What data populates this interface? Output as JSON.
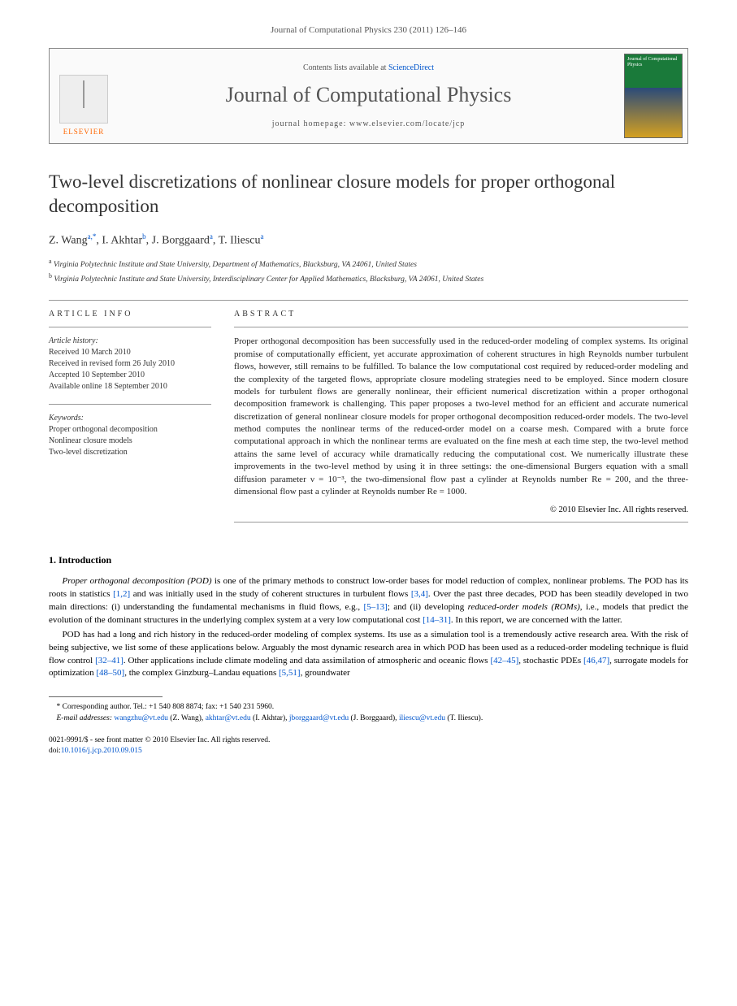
{
  "journalRef": "Journal of Computational Physics 230 (2011) 126–146",
  "masthead": {
    "contentsPrefix": "Contents lists available at ",
    "contentsLink": "ScienceDirect",
    "journalTitle": "Journal of Computational Physics",
    "homepagePrefix": "journal homepage: ",
    "homepage": "www.elsevier.com/locate/jcp",
    "publisherLabel": "ELSEVIER",
    "coverTitle": "Journal of Computational Physics"
  },
  "article": {
    "title": "Two-level discretizations of nonlinear closure models for proper orthogonal decomposition",
    "authors": [
      {
        "name": "Z. Wang",
        "affMark": "a,",
        "corr": "*"
      },
      {
        "name": "I. Akhtar",
        "affMark": "b"
      },
      {
        "name": "J. Borggaard",
        "affMark": "a"
      },
      {
        "name": "T. Iliescu",
        "affMark": "a"
      }
    ],
    "affiliations": [
      {
        "mark": "a",
        "text": "Virginia Polytechnic Institute and State University, Department of Mathematics, Blacksburg, VA 24061, United States"
      },
      {
        "mark": "b",
        "text": "Virginia Polytechnic Institute and State University, Interdisciplinary Center for Applied Mathematics, Blacksburg, VA 24061, United States"
      }
    ]
  },
  "info": {
    "sectionLabel": "ARTICLE INFO",
    "historyLabel": "Article history:",
    "history": [
      "Received 10 March 2010",
      "Received in revised form 26 July 2010",
      "Accepted 10 September 2010",
      "Available online 18 September 2010"
    ],
    "keywordsLabel": "Keywords:",
    "keywords": [
      "Proper orthogonal decomposition",
      "Nonlinear closure models",
      "Two-level discretization"
    ]
  },
  "abstract": {
    "sectionLabel": "ABSTRACT",
    "text": "Proper orthogonal decomposition has been successfully used in the reduced-order modeling of complex systems. Its original promise of computationally efficient, yet accurate approximation of coherent structures in high Reynolds number turbulent flows, however, still remains to be fulfilled. To balance the low computational cost required by reduced-order modeling and the complexity of the targeted flows, appropriate closure modeling strategies need to be employed. Since modern closure models for turbulent flows are generally nonlinear, their efficient numerical discretization within a proper orthogonal decomposition framework is challenging. This paper proposes a two-level method for an efficient and accurate numerical discretization of general nonlinear closure models for proper orthogonal decomposition reduced-order models. The two-level method computes the nonlinear terms of the reduced-order model on a coarse mesh. Compared with a brute force computational approach in which the nonlinear terms are evaluated on the fine mesh at each time step, the two-level method attains the same level of accuracy while dramatically reducing the computational cost. We numerically illustrate these improvements in the two-level method by using it in three settings: the one-dimensional Burgers equation with a small diffusion parameter ν = 10⁻³, the two-dimensional flow past a cylinder at Reynolds number Re = 200, and the three-dimensional flow past a cylinder at Reynolds number Re = 1000.",
    "copyright": "© 2010 Elsevier Inc. All rights reserved."
  },
  "intro": {
    "heading": "1. Introduction",
    "para1_lead": "Proper orthogonal decomposition (POD)",
    "para1_rest": " is one of the primary methods to construct low-order bases for model reduction of complex, nonlinear problems. The POD has its roots in statistics ",
    "para1_ref1": "[1,2]",
    "para1_mid1": " and was initially used in the study of coherent structures in turbulent flows ",
    "para1_ref2": "[3,4]",
    "para1_mid2": ". Over the past three decades, POD has been steadily developed in two main directions: (i) understanding the fundamental mechanisms in fluid flows, e.g., ",
    "para1_ref3": "[5–13]",
    "para1_mid3": "; and (ii) developing ",
    "para1_ital": "reduced-order models (ROMs)",
    "para1_mid4": ", i.e., models that predict the evolution of the dominant structures in the underlying complex system at a very low computational cost ",
    "para1_ref4": "[14–31]",
    "para1_end": ". In this report, we are concerned with the latter.",
    "para2_a": "POD has had a long and rich history in the reduced-order modeling of complex systems. Its use as a simulation tool is a tremendously active research area. With the risk of being subjective, we list some of these applications below. Arguably the most dynamic research area in which POD has been used as a reduced-order modeling technique is fluid flow control ",
    "para2_ref1": "[32–41]",
    "para2_b": ". Other applications include climate modeling and data assimilation of atmospheric and oceanic flows ",
    "para2_ref2": "[42–45]",
    "para2_c": ", stochastic PDEs ",
    "para2_ref3": "[46,47]",
    "para2_d": ", surrogate models for optimization ",
    "para2_ref4": "[48–50]",
    "para2_e": ", the complex Ginzburg–Landau equations ",
    "para2_ref5": "[5,51]",
    "para2_f": ", groundwater"
  },
  "footnotes": {
    "corrLabel": "* Corresponding author. ",
    "corrText": "Tel.: +1 540 808 8874; fax: +1 540 231 5960.",
    "emailLabel": "E-mail addresses: ",
    "emails": [
      {
        "addr": "wangzhu@vt.edu",
        "who": " (Z. Wang), "
      },
      {
        "addr": "akhtar@vt.edu",
        "who": " (I. Akhtar), "
      },
      {
        "addr": "jborggaard@vt.edu",
        "who": " (J. Borggaard), "
      },
      {
        "addr": "iliescu@vt.edu",
        "who": " (T. Iliescu)."
      }
    ]
  },
  "footer": {
    "line1": "0021-9991/$ - see front matter © 2010 Elsevier Inc. All rights reserved.",
    "doiLabel": "doi:",
    "doi": "10.1016/j.jcp.2010.09.015"
  }
}
